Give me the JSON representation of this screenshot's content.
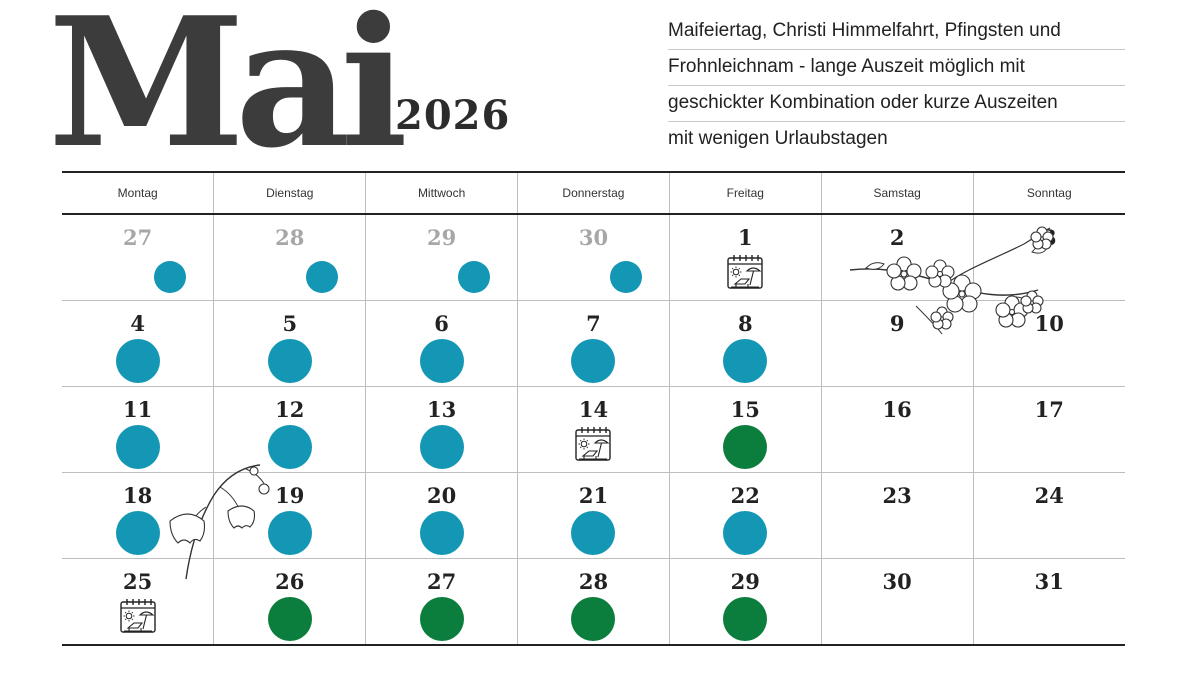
{
  "header": {
    "month": "Mai",
    "year": "2026",
    "description_lines": [
      "Maifeiertag, Christi Himmelfahrt, Pfingsten und",
      "Frohnleichnam - lange Auszeit möglich mit",
      "geschickter Kombination oder kurze Auszeiten",
      "mit wenigen Urlaubstagen"
    ]
  },
  "colors": {
    "blue_dot": "#1497b5",
    "green_dot": "#0b7d3c",
    "muted_number": "#a7a7a7",
    "month_text": "#3c3c3c"
  },
  "weekdays": [
    "Montag",
    "Dienstag",
    "Mittwoch",
    "Donnerstag",
    "Freitag",
    "Samstag",
    "Sonntag"
  ],
  "weeks": [
    [
      {
        "day": "27",
        "muted": true,
        "marker": "blue-small"
      },
      {
        "day": "28",
        "muted": true,
        "marker": "blue-small"
      },
      {
        "day": "29",
        "muted": true,
        "marker": "blue-small"
      },
      {
        "day": "30",
        "muted": true,
        "marker": "blue-small"
      },
      {
        "day": "1",
        "marker": "holiday-icon"
      },
      {
        "day": "2",
        "marker": ""
      },
      {
        "day": "3",
        "marker": ""
      }
    ],
    [
      {
        "day": "4",
        "marker": "blue"
      },
      {
        "day": "5",
        "marker": "blue"
      },
      {
        "day": "6",
        "marker": "blue"
      },
      {
        "day": "7",
        "marker": "blue"
      },
      {
        "day": "8",
        "marker": "blue"
      },
      {
        "day": "9",
        "marker": ""
      },
      {
        "day": "10",
        "marker": ""
      }
    ],
    [
      {
        "day": "11",
        "marker": "blue"
      },
      {
        "day": "12",
        "marker": "blue"
      },
      {
        "day": "13",
        "marker": "blue"
      },
      {
        "day": "14",
        "marker": "holiday-icon"
      },
      {
        "day": "15",
        "marker": "green"
      },
      {
        "day": "16",
        "marker": ""
      },
      {
        "day": "17",
        "marker": ""
      }
    ],
    [
      {
        "day": "18",
        "marker": "blue"
      },
      {
        "day": "19",
        "marker": "blue"
      },
      {
        "day": "20",
        "marker": "blue"
      },
      {
        "day": "21",
        "marker": "blue"
      },
      {
        "day": "22",
        "marker": "blue"
      },
      {
        "day": "23",
        "marker": ""
      },
      {
        "day": "24",
        "marker": ""
      }
    ],
    [
      {
        "day": "25",
        "marker": "holiday-icon"
      },
      {
        "day": "26",
        "marker": "green"
      },
      {
        "day": "27",
        "marker": "green"
      },
      {
        "day": "28",
        "marker": "green"
      },
      {
        "day": "29",
        "marker": "green"
      },
      {
        "day": "30",
        "marker": ""
      },
      {
        "day": "31",
        "marker": ""
      }
    ]
  ],
  "decorations": [
    "blossom-branch-illustration",
    "lily-of-the-valley-illustration"
  ],
  "icons": {
    "holiday": "calendar-sun-beach-chair-icon"
  }
}
